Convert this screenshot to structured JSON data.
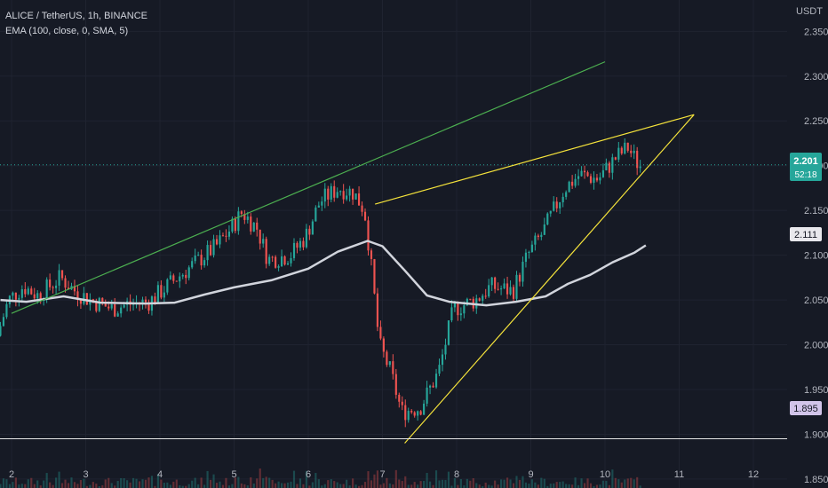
{
  "header": {
    "symbol_line": "ALICE / TetherUS, 1h, BINANCE",
    "indicator_line": "EMA (100, close, 0, SMA, 5)"
  },
  "price_axis": {
    "currency": "USDT",
    "current_price": "2.201",
    "countdown": "52:18",
    "ema_value": "2.111",
    "support_value": "1.895"
  },
  "colors": {
    "background": "#161a25",
    "up": "#26a69a",
    "down": "#ef5350",
    "ema": "#d1d4dc",
    "channel_line": "#4caf50",
    "wedge_lines": "#f5e33b",
    "support_line": "#e6e6e6",
    "support_badge": "#d1c4e9"
  },
  "chart_data": {
    "type": "candlestick",
    "title": "ALICE / TetherUS, 1h, BINANCE",
    "ylim": [
      1.84,
      2.385
    ],
    "y_ticks": [
      "2.350",
      "2.300",
      "2.250",
      "2.200",
      "2.150",
      "2.100",
      "2.050",
      "2.000",
      "1.950",
      "1.900",
      "1.850"
    ],
    "x_tick_labels": [
      "2",
      "3",
      "4",
      "5",
      "6",
      "7",
      "8",
      "9",
      "10",
      "11",
      "12"
    ],
    "x_day_range": [
      2,
      12
    ],
    "current_price": 2.201,
    "ema": {
      "name": "EMA (100, close, 0, SMA, 5)",
      "points": [
        [
          1.85,
          2.05
        ],
        [
          2.2,
          2.048
        ],
        [
          2.7,
          2.054
        ],
        [
          3.2,
          2.047
        ],
        [
          3.8,
          2.046
        ],
        [
          4.2,
          2.047
        ],
        [
          4.6,
          2.056
        ],
        [
          5.0,
          2.064
        ],
        [
          5.5,
          2.072
        ],
        [
          6.0,
          2.085
        ],
        [
          6.4,
          2.104
        ],
        [
          6.8,
          2.116
        ],
        [
          7.0,
          2.11
        ],
        [
          7.3,
          2.083
        ],
        [
          7.6,
          2.055
        ],
        [
          7.9,
          2.048
        ],
        [
          8.4,
          2.044
        ],
        [
          8.8,
          2.048
        ],
        [
          9.2,
          2.054
        ],
        [
          9.5,
          2.068
        ],
        [
          9.8,
          2.078
        ],
        [
          10.1,
          2.092
        ],
        [
          10.4,
          2.103
        ],
        [
          10.55,
          2.111
        ]
      ]
    },
    "candle_path": [
      [
        1.85,
        2.01
      ],
      [
        2.0,
        2.05
      ],
      [
        2.2,
        2.065
      ],
      [
        2.4,
        2.055
      ],
      [
        2.7,
        2.075
      ],
      [
        2.9,
        2.06
      ],
      [
        3.1,
        2.05
      ],
      [
        3.4,
        2.04
      ],
      [
        3.6,
        2.045
      ],
      [
        3.9,
        2.048
      ],
      [
        4.2,
        2.07
      ],
      [
        4.5,
        2.09
      ],
      [
        4.8,
        2.11
      ],
      [
        5.0,
        2.13
      ],
      [
        5.15,
        2.148
      ],
      [
        5.35,
        2.13
      ],
      [
        5.5,
        2.095
      ],
      [
        5.8,
        2.1
      ],
      [
        6.0,
        2.12
      ],
      [
        6.2,
        2.16
      ],
      [
        6.45,
        2.175
      ],
      [
        6.65,
        2.17
      ],
      [
        6.8,
        2.15
      ],
      [
        6.88,
        2.095
      ],
      [
        7.0,
        2.0
      ],
      [
        7.15,
        1.97
      ],
      [
        7.3,
        1.925
      ],
      [
        7.55,
        1.93
      ],
      [
        7.8,
        1.97
      ],
      [
        8.0,
        2.04
      ],
      [
        8.3,
        2.05
      ],
      [
        8.5,
        2.065
      ],
      [
        8.8,
        2.06
      ],
      [
        9.0,
        2.1
      ],
      [
        9.2,
        2.125
      ],
      [
        9.5,
        2.175
      ],
      [
        9.7,
        2.19
      ],
      [
        9.95,
        2.185
      ],
      [
        10.2,
        2.21
      ],
      [
        10.35,
        2.22
      ],
      [
        10.5,
        2.2
      ]
    ],
    "trendlines": [
      {
        "label": "channel",
        "color": "green",
        "from": [
          2.0,
          2.035
        ],
        "to": [
          10.0,
          2.316
        ]
      },
      {
        "label": "wedge-upper",
        "color": "yellow",
        "from": [
          6.9,
          2.157
        ],
        "to": [
          11.2,
          2.257
        ]
      },
      {
        "label": "wedge-lower",
        "color": "yellow",
        "from": [
          7.3,
          1.89
        ],
        "to": [
          11.2,
          2.257
        ]
      },
      {
        "label": "support",
        "color": "white",
        "level": 1.895
      }
    ],
    "current_price_line": 2.201
  }
}
